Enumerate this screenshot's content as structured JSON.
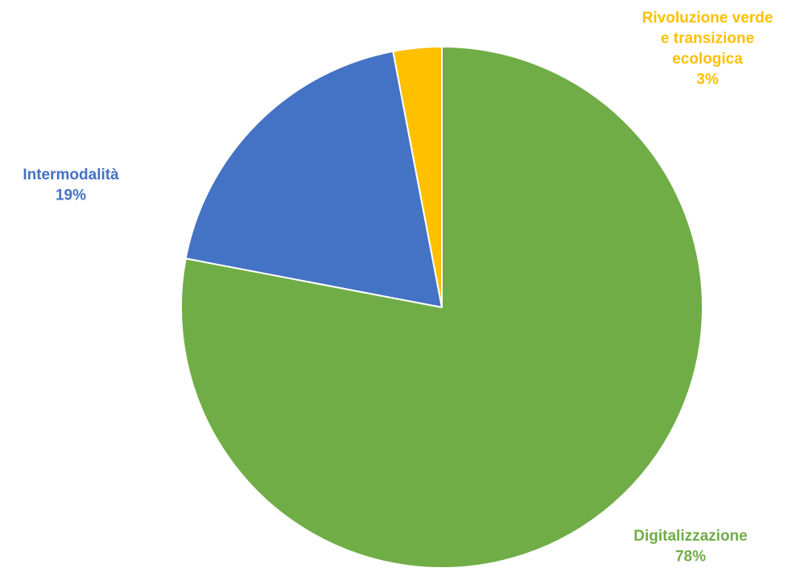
{
  "chart_data": {
    "type": "pie",
    "title": "",
    "start_angle_deg": 0,
    "direction": "clockwise",
    "slices": [
      {
        "label": "Digitalizzazione",
        "value": 78,
        "value_label": "78%",
        "color": "#70AD47"
      },
      {
        "label": "Intermodalità",
        "value": 19,
        "value_label": "19%",
        "color": "#4472C4"
      },
      {
        "label": "Rivoluzione verde e transizione ecologica",
        "value": 3,
        "value_label": "3%",
        "color": "#FFC000"
      }
    ],
    "label_lines": [
      [
        "Digitalizzazione",
        "78%"
      ],
      [
        "Intermodalità",
        "19%"
      ],
      [
        "Rivoluzione verde",
        "e transizione",
        "ecologica",
        "3%"
      ]
    ],
    "slice_border_color": "#ffffff",
    "legend": "none"
  }
}
